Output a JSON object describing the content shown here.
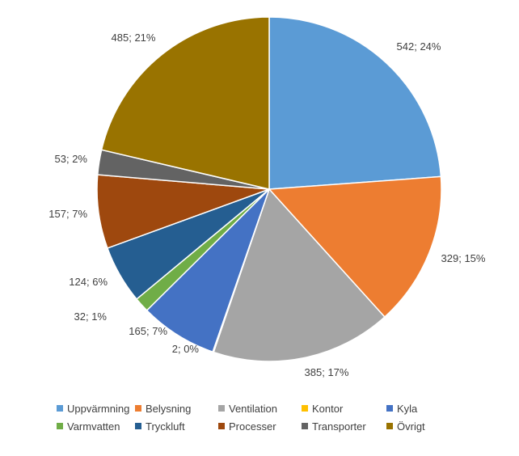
{
  "chart_data": {
    "type": "pie",
    "categories": [
      "Uppvärmning",
      "Belysning",
      "Ventilation",
      "Kontor",
      "Kyla",
      "Varmvatten",
      "Tryckluft",
      "Processer",
      "Transporter",
      "Övrigt"
    ],
    "values": [
      542,
      329,
      385,
      2,
      165,
      32,
      124,
      157,
      53,
      485
    ],
    "percent_labels": [
      "24%",
      "15%",
      "17%",
      "0%",
      "7%",
      "1%",
      "6%",
      "7%",
      "2%",
      "21%"
    ],
    "data_labels": [
      "542; 24%",
      "329; 15%",
      "385; 17%",
      "2; 0%",
      "165; 7%",
      "32; 1%",
      "124; 6%",
      "157; 7%",
      "53; 2%",
      "485; 21%"
    ],
    "colors": [
      "#5B9BD5",
      "#ED7D31",
      "#A5A5A5",
      "#FFC000",
      "#4472C4",
      "#70AD47",
      "#255E91",
      "#9E480E",
      "#636363",
      "#997300"
    ],
    "start_angle_deg": 0,
    "direction": "clockwise",
    "legend_position": "bottom"
  }
}
